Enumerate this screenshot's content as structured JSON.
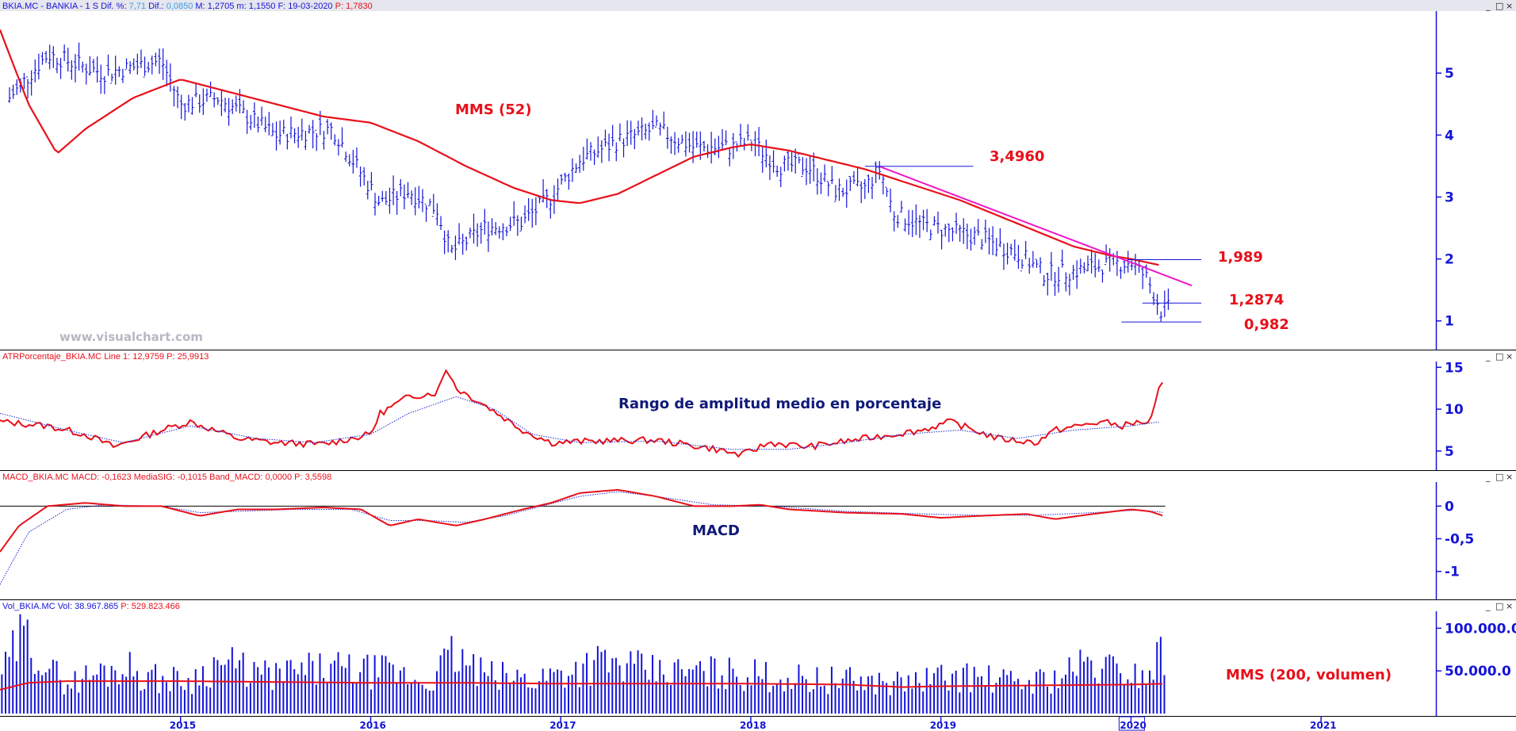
{
  "colors": {
    "price": "#1414d8",
    "avg_red": "#e8101a",
    "trend": "#ee16c8",
    "signal": "#1a2ad8",
    "axis": "#1414d8",
    "divider": "#000000"
  },
  "window_controls": [
    "_",
    "□",
    "×"
  ],
  "header_price": {
    "name": "BKIA.MC - BANKIA - 1 S",
    "dif_pct_label": "Dif. %:",
    "dif_pct": "7,71",
    "dif_label": "Dif.:",
    "dif": "0,0850",
    "max_label": "M:",
    "max": "1,2705",
    "min_label": "m:",
    "min": "1,1550",
    "date_label": "F:",
    "date": "19-03-2020",
    "last_label": "P:",
    "last": "1,7830"
  },
  "header_atr": {
    "name": "ATRPorcentaje_BKIA.MC",
    "line_label": "Line 1:",
    "line": "12,9759",
    "p_label": "P:",
    "p": "25,9913"
  },
  "header_macd": {
    "name": "MACD_BKIA.MC",
    "macd_label": "MACD:",
    "macd": "-0,1623",
    "sig_label": "MediaSIG:",
    "sig": "-0,1015",
    "band_label": "Band_MACD:",
    "band": "0,0000",
    "p_label": "P:",
    "p": "3,5598"
  },
  "header_vol": {
    "name": "Vol_BKIA.MC",
    "vol_label": "Vol:",
    "vol": "38.967.865",
    "p_label": "P:",
    "p": "529.823.466"
  },
  "watermark": "www.visualchart.com",
  "annotations": {
    "mms52": "MMS (52)",
    "level_high": "3,4960",
    "level_mid": "1,989",
    "level_low1": "1,2874",
    "level_low2": "0,982",
    "atr_title": "Rango de amplitud medio en porcentaje",
    "macd_title": "MACD",
    "vol_title": "MMS (200, volumen)"
  },
  "x_axis": {
    "labels": [
      "2015",
      "2016",
      "2017",
      "2018",
      "2019",
      "2020",
      "2021"
    ],
    "highlight": "2020"
  },
  "chart_data": [
    {
      "type": "line",
      "panel": "price",
      "x_range": [
        2014.05,
        2021.6
      ],
      "ylim": [
        0.6,
        5.95
      ],
      "y_ticks": [
        1,
        2,
        3,
        4,
        5
      ],
      "series": [
        {
          "name": "",
          "style": "ohlc",
          "x": [
            2014.1,
            2014.3,
            2014.6,
            2014.9,
            2015.0,
            2015.2,
            2015.5,
            2015.8,
            2016.05,
            2016.2,
            2016.35,
            2016.42,
            2016.6,
            2016.8,
            2016.95,
            2017.1,
            2017.3,
            2017.5,
            2017.7,
            2017.9,
            2018.0,
            2018.15,
            2018.3,
            2018.45,
            2018.6,
            2018.68,
            2018.75,
            2018.9,
            2019.05,
            2019.2,
            2019.4,
            2019.55,
            2019.7,
            2019.85,
            2020.0,
            2020.08,
            2020.12,
            2020.16,
            2020.2
          ],
          "values": [
            4.6,
            5.3,
            5.0,
            5.2,
            4.5,
            4.6,
            4.0,
            4.1,
            2.9,
            3.1,
            2.8,
            2.1,
            2.5,
            2.6,
            3.0,
            3.6,
            3.9,
            4.1,
            3.8,
            3.8,
            3.9,
            3.5,
            3.5,
            3.1,
            3.15,
            3.45,
            2.75,
            2.55,
            2.45,
            2.35,
            2.1,
            1.75,
            1.8,
            1.9,
            1.95,
            1.7,
            1.45,
            1.15,
            1.2
          ]
        },
        {
          "name": "MMS (52)",
          "style": "line",
          "x": [
            2014.05,
            2014.2,
            2014.35,
            2014.5,
            2014.75,
            2015.0,
            2015.25,
            2015.5,
            2015.75,
            2016.0,
            2016.25,
            2016.5,
            2016.75,
            2016.95,
            2017.1,
            2017.3,
            2017.5,
            2017.7,
            2017.9,
            2018.0,
            2018.2,
            2018.4,
            2018.6,
            2018.75,
            2018.9,
            2019.1,
            2019.3,
            2019.5,
            2019.7,
            2019.9,
            2020.0,
            2020.15
          ],
          "values": [
            5.7,
            4.5,
            3.7,
            4.1,
            4.6,
            4.9,
            4.7,
            4.5,
            4.3,
            4.2,
            3.9,
            3.5,
            3.15,
            2.95,
            2.9,
            3.05,
            3.35,
            3.65,
            3.8,
            3.85,
            3.75,
            3.6,
            3.45,
            3.3,
            3.15,
            2.95,
            2.7,
            2.45,
            2.2,
            2.05,
            2.0,
            1.9
          ]
        },
        {
          "name": "",
          "style": "trend",
          "x": [
            2018.68,
            2020.32
          ],
          "values": [
            3.49,
            1.57
          ]
        }
      ],
      "levels": [
        {
          "label": "3,4960",
          "value": 3.496,
          "x_from": 2018.6,
          "x_to": 2019.17
        },
        {
          "label": "1,989",
          "value": 1.989,
          "x_from": 2019.98,
          "x_to": 2020.37
        },
        {
          "label": "1,2874",
          "value": 1.2874,
          "x_from": 2020.06,
          "x_to": 2020.37
        },
        {
          "label": "0,982",
          "value": 0.982,
          "x_from": 2019.95,
          "x_to": 2020.37
        }
      ]
    },
    {
      "type": "line",
      "panel": "atr",
      "ylim": [
        3,
        15.5
      ],
      "y_ticks": [
        5,
        10,
        15
      ],
      "series": [
        {
          "name": "Line 1",
          "x": [
            2014.05,
            2014.3,
            2014.5,
            2014.65,
            2014.9,
            2015.05,
            2015.3,
            2015.5,
            2015.75,
            2016.0,
            2016.05,
            2016.2,
            2016.35,
            2016.4,
            2016.45,
            2016.6,
            2016.8,
            2016.95,
            2017.2,
            2017.5,
            2017.8,
            2017.95,
            2018.1,
            2018.3,
            2018.6,
            2018.9,
            2019.05,
            2019.3,
            2019.5,
            2019.6,
            2019.85,
            2019.95,
            2020.05,
            2020.1,
            2020.15,
            2020.18
          ],
          "values": [
            8.5,
            8.0,
            7.0,
            5.5,
            7.5,
            8.5,
            6.5,
            6.0,
            5.8,
            7.0,
            9.5,
            11.5,
            12.0,
            15.0,
            12.5,
            10.5,
            7.5,
            6.0,
            6.2,
            6.3,
            5.3,
            4.5,
            6.0,
            5.5,
            6.5,
            7.5,
            8.5,
            6.5,
            6.0,
            7.5,
            8.5,
            8.0,
            8.5,
            8.2,
            12.5,
            13.5
          ]
        },
        {
          "name": "",
          "x": [
            2014.05,
            2014.4,
            2014.7,
            2015.05,
            2015.4,
            2015.7,
            2016.0,
            2016.2,
            2016.45,
            2016.65,
            2016.85,
            2017.1,
            2017.5,
            2017.9,
            2018.2,
            2018.5,
            2018.8,
            2019.1,
            2019.4,
            2019.7,
            2020.0,
            2020.15
          ],
          "values": [
            9.5,
            7.5,
            6.0,
            8.0,
            6.5,
            6.0,
            7.0,
            9.5,
            11.5,
            10.0,
            7.0,
            6.0,
            6.2,
            5.2,
            5.2,
            6.0,
            7.0,
            7.5,
            6.5,
            7.5,
            8.0,
            8.5
          ]
        }
      ]
    },
    {
      "type": "line",
      "panel": "macd",
      "ylim": [
        -1.38,
        0.32
      ],
      "y_ticks": [
        0,
        -0.5,
        -1
      ],
      "y_tick_labels": [
        "0",
        "-0,5",
        "-1"
      ],
      "series": [
        {
          "name": "MACD",
          "x": [
            2014.05,
            2014.15,
            2014.3,
            2014.5,
            2014.7,
            2014.9,
            2015.1,
            2015.3,
            2015.5,
            2015.75,
            2015.95,
            2016.1,
            2016.25,
            2016.45,
            2016.6,
            2016.8,
            2016.95,
            2017.1,
            2017.3,
            2017.5,
            2017.7,
            2017.9,
            2018.05,
            2018.2,
            2018.5,
            2018.8,
            2019.0,
            2019.2,
            2019.45,
            2019.6,
            2019.8,
            2020.0,
            2020.1,
            2020.18
          ],
          "values": [
            -0.7,
            -0.3,
            0.0,
            0.05,
            0.0,
            0.0,
            -0.15,
            -0.05,
            -0.05,
            -0.02,
            -0.05,
            -0.3,
            -0.2,
            -0.3,
            -0.2,
            -0.05,
            0.05,
            0.2,
            0.25,
            0.15,
            0.0,
            0.0,
            0.02,
            -0.05,
            -0.1,
            -0.12,
            -0.18,
            -0.15,
            -0.12,
            -0.2,
            -0.12,
            -0.05,
            -0.08,
            -0.16
          ]
        },
        {
          "name": "MediaSIG",
          "x": [
            2014.05,
            2014.2,
            2014.4,
            2014.6,
            2014.9,
            2015.1,
            2015.3,
            2015.6,
            2015.9,
            2016.1,
            2016.3,
            2016.5,
            2016.7,
            2016.9,
            2017.1,
            2017.3,
            2017.5,
            2017.8,
            2018.1,
            2018.5,
            2018.9,
            2019.2,
            2019.5,
            2019.8,
            2020.05,
            2020.18
          ],
          "values": [
            -1.2,
            -0.4,
            -0.05,
            0.02,
            0.0,
            -0.1,
            -0.08,
            -0.05,
            -0.05,
            -0.22,
            -0.22,
            -0.25,
            -0.15,
            0.0,
            0.15,
            0.22,
            0.15,
            0.02,
            0.0,
            -0.08,
            -0.12,
            -0.14,
            -0.14,
            -0.1,
            -0.06,
            -0.1
          ]
        }
      ]
    },
    {
      "type": "bar",
      "panel": "volume",
      "ylim": [
        0,
        118000
      ],
      "y_ticks": [
        50000,
        100000
      ],
      "y_tick_labels": [
        "50.000.0",
        "100.000.0"
      ],
      "series": [
        {
          "name": "Vol",
          "x": [
            2014.08,
            2014.16,
            2014.24,
            2014.32,
            2014.42,
            2014.55,
            2014.7,
            2014.85,
            2015.05,
            2015.2,
            2015.45,
            2015.75,
            2016.1,
            2016.3,
            2016.43,
            2016.6,
            2016.85,
            2017.2,
            2017.5,
            2017.85,
            2018.2,
            2018.5,
            2018.8,
            2019.1,
            2019.4,
            2019.6,
            2019.75,
            2019.9,
            2020.08,
            2020.12,
            2020.17
          ],
          "values": [
            65000,
            110000,
            100000,
            60000,
            45000,
            58000,
            70000,
            52000,
            48000,
            75000,
            55000,
            65000,
            60000,
            45000,
            85000,
            55000,
            50000,
            75000,
            60000,
            60000,
            52000,
            48000,
            45000,
            55000,
            45000,
            52000,
            70000,
            65000,
            55000,
            75000,
            90000
          ]
        },
        {
          "name": "MMS (200, volumen)",
          "style": "line",
          "x": [
            2014.05,
            2014.2,
            2014.4,
            2015.0,
            2015.5,
            2016.0,
            2016.5,
            2017.0,
            2017.5,
            2018.0,
            2018.5,
            2018.8,
            2019.0,
            2019.5,
            2020.0,
            2020.18
          ],
          "values": [
            28000,
            36000,
            38000,
            38000,
            37000,
            36000,
            36000,
            35000,
            35000,
            35000,
            34000,
            31000,
            32000,
            33000,
            34000,
            35000
          ]
        }
      ]
    }
  ]
}
